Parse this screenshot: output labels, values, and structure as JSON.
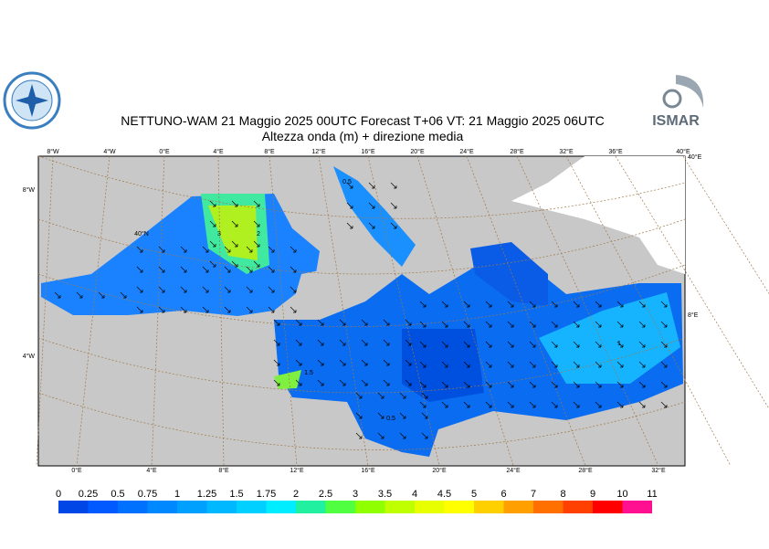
{
  "header": {
    "title": "NETTUNO-WAM  21   Maggio  2025 00UTC Forecast T+06 VT: 21   Maggio  2025 06UTC",
    "subtitle": "Altezza onda (m) + direzione media",
    "logo_right": "ISMAR"
  },
  "map": {
    "lon_labels_top": [
      "8°W",
      "4°W",
      "0°E",
      "4°E",
      "8°E",
      "12°E",
      "16°E",
      "20°E",
      "24°E",
      "28°E",
      "32°E",
      "36°E",
      "40°E"
    ],
    "lon_labels_bottom": [
      "0°E",
      "4°E",
      "8°E",
      "12°E",
      "16°E",
      "20°E",
      "24°E",
      "28°E",
      "32°E"
    ],
    "lat_labels_left": [
      "8°W",
      "4°W"
    ],
    "lat_labels_right": [
      "40°E",
      "8°E"
    ],
    "inner_label": "40°N",
    "contour_labels": [
      "3",
      "2",
      "1.5",
      "0.5",
      "1",
      "0.5"
    ]
  },
  "colorbar": {
    "labels": [
      0,
      0.25,
      0.5,
      0.75,
      1,
      1.25,
      1.5,
      1.75,
      2,
      2.5,
      3,
      3.5,
      4,
      4.5,
      5,
      6,
      7,
      8,
      9,
      10,
      11
    ],
    "colors": [
      "#0046e6",
      "#005aff",
      "#0070ff",
      "#0088ff",
      "#00a0ff",
      "#00b8ff",
      "#00d0ff",
      "#00ecff",
      "#20f0a0",
      "#50ff40",
      "#90ff00",
      "#c0ff00",
      "#e8ff00",
      "#ffff00",
      "#ffd000",
      "#ffa000",
      "#ff7000",
      "#ff4000",
      "#ff0000",
      "#ff1090"
    ]
  }
}
